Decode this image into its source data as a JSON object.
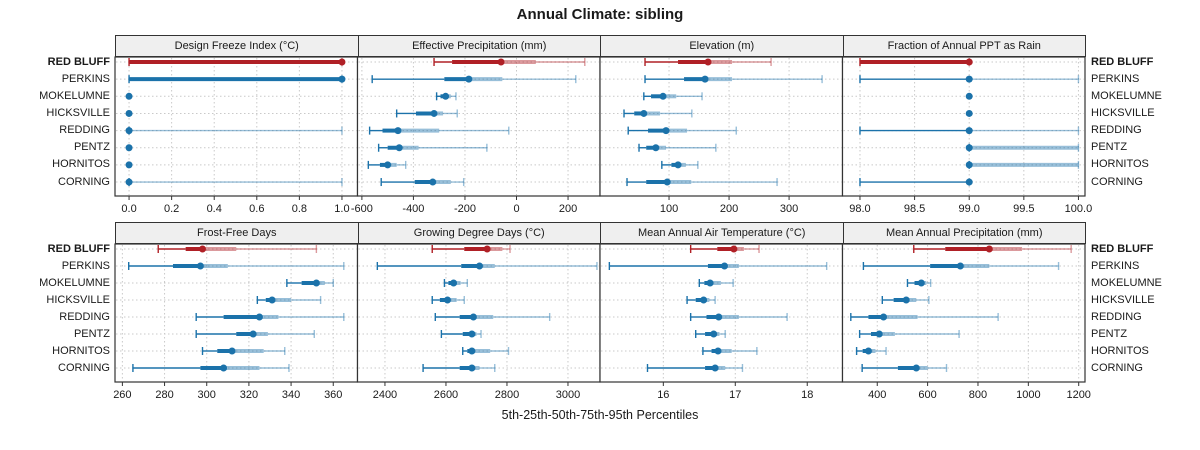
{
  "title": "Annual Climate: sibling",
  "footer": "5th-25th-50th-75th-95th Percentiles",
  "sites": [
    "RED BLUFF",
    "PERKINS",
    "MOKELUMNE",
    "HICKSVILLE",
    "REDDING",
    "PENTZ",
    "HORNITOS",
    "CORNING"
  ],
  "highlight_site": "RED BLUFF",
  "percentiles": [
    "5th",
    "25th",
    "50th",
    "75th",
    "95th"
  ],
  "colors": {
    "highlight": "#b02026",
    "normal": "#1b72aa",
    "grid": "#c9c9c9",
    "panel_border": "#333333",
    "header_bg": "#efefef",
    "text": "#1a1a1a"
  },
  "chart_data": [
    {
      "type": "dot-interval",
      "row": 0,
      "col": 0,
      "title": "Design Freeze Index (°C)",
      "xlim": [
        -0.066,
        1.073
      ],
      "ticks": [
        0.0,
        0.2,
        0.4,
        0.6,
        0.8,
        1.0
      ],
      "tick_labels": [
        "0.0",
        "0.2",
        "0.4",
        "0.6",
        "0.8",
        "1.0"
      ],
      "series": [
        {
          "name": "RED BLUFF",
          "values": [
            0,
            0,
            1,
            1,
            1
          ]
        },
        {
          "name": "PERKINS",
          "values": [
            0,
            0,
            1,
            1,
            1
          ]
        },
        {
          "name": "MOKELUMNE",
          "values": [
            0,
            0,
            0,
            0,
            0
          ]
        },
        {
          "name": "HICKSVILLE",
          "values": [
            0,
            0,
            0,
            0,
            0
          ]
        },
        {
          "name": "REDDING",
          "values": [
            0,
            0,
            0,
            0,
            1
          ]
        },
        {
          "name": "PENTZ",
          "values": [
            0,
            0,
            0,
            0,
            0
          ]
        },
        {
          "name": "HORNITOS",
          "values": [
            0,
            0,
            0,
            0,
            0
          ]
        },
        {
          "name": "CORNING",
          "values": [
            0,
            0,
            0,
            0,
            1
          ]
        }
      ]
    },
    {
      "type": "dot-interval",
      "row": 0,
      "col": 1,
      "title": "Effective Precipitation (mm)",
      "xlim": [
        -617,
        324
      ],
      "ticks": [
        -600,
        -400,
        -200,
        0,
        200
      ],
      "tick_labels": [
        "-600",
        "-400",
        "-200",
        "0",
        "200"
      ],
      "series": [
        {
          "name": "RED BLUFF",
          "values": [
            -320,
            -250,
            -60,
            75,
            265
          ]
        },
        {
          "name": "PERKINS",
          "values": [
            -560,
            -280,
            -185,
            -55,
            230
          ]
        },
        {
          "name": "MOKELUMNE",
          "values": [
            -310,
            -295,
            -275,
            -255,
            -235
          ]
        },
        {
          "name": "HICKSVILLE",
          "values": [
            -465,
            -390,
            -320,
            -285,
            -230
          ]
        },
        {
          "name": "REDDING",
          "values": [
            -570,
            -520,
            -460,
            -300,
            -30
          ]
        },
        {
          "name": "PENTZ",
          "values": [
            -535,
            -500,
            -455,
            -380,
            -115
          ]
        },
        {
          "name": "HORNITOS",
          "values": [
            -575,
            -530,
            -500,
            -465,
            -430
          ]
        },
        {
          "name": "CORNING",
          "values": [
            -525,
            -395,
            -325,
            -255,
            -205
          ]
        }
      ]
    },
    {
      "type": "dot-interval",
      "row": 0,
      "col": 2,
      "title": "Elevation (m)",
      "xlim": [
        -15,
        389
      ],
      "ticks": [
        100,
        200,
        300
      ],
      "tick_labels": [
        "100",
        "200",
        "300"
      ],
      "series": [
        {
          "name": "RED BLUFF",
          "values": [
            60,
            115,
            165,
            205,
            270
          ]
        },
        {
          "name": "PERKINS",
          "values": [
            60,
            125,
            160,
            205,
            355
          ]
        },
        {
          "name": "MOKELUMNE",
          "values": [
            58,
            70,
            90,
            112,
            155
          ]
        },
        {
          "name": "HICKSVILLE",
          "values": [
            25,
            42,
            58,
            85,
            138
          ]
        },
        {
          "name": "REDDING",
          "values": [
            32,
            65,
            95,
            130,
            212
          ]
        },
        {
          "name": "PENTZ",
          "values": [
            50,
            62,
            78,
            95,
            178
          ]
        },
        {
          "name": "HORNITOS",
          "values": [
            88,
            104,
            115,
            128,
            148
          ]
        },
        {
          "name": "CORNING",
          "values": [
            30,
            62,
            97,
            137,
            280
          ]
        }
      ]
    },
    {
      "type": "dot-interval",
      "row": 0,
      "col": 3,
      "title": "Fraction of Annual PPT as Rain",
      "xlim": [
        97.84,
        100.06
      ],
      "ticks": [
        98.0,
        98.5,
        99.0,
        99.5,
        100.0
      ],
      "tick_labels": [
        "98.0",
        "98.5",
        "99.0",
        "99.5",
        "100.0"
      ],
      "series": [
        {
          "name": "RED BLUFF",
          "values": [
            98,
            98,
            99,
            99,
            99
          ]
        },
        {
          "name": "PERKINS",
          "values": [
            98,
            99,
            99,
            99,
            100
          ]
        },
        {
          "name": "MOKELUMNE",
          "values": [
            99,
            99,
            99,
            99,
            99
          ]
        },
        {
          "name": "HICKSVILLE",
          "values": [
            99,
            99,
            99,
            99,
            99
          ]
        },
        {
          "name": "REDDING",
          "values": [
            98,
            99,
            99,
            99,
            100
          ]
        },
        {
          "name": "PENTZ",
          "values": [
            99,
            99,
            99,
            100,
            100
          ]
        },
        {
          "name": "HORNITOS",
          "values": [
            99,
            99,
            99,
            100,
            100
          ]
        },
        {
          "name": "CORNING",
          "values": [
            98,
            99,
            99,
            99,
            99
          ]
        }
      ]
    },
    {
      "type": "dot-interval",
      "row": 1,
      "col": 0,
      "title": "Frost-Free Days",
      "xlim": [
        256.5,
        371.5
      ],
      "ticks": [
        260,
        280,
        300,
        320,
        340,
        360
      ],
      "tick_labels": [
        "260",
        "280",
        "300",
        "320",
        "340",
        "360"
      ],
      "series": [
        {
          "name": "RED BLUFF",
          "values": [
            277,
            290,
            298,
            314,
            352
          ]
        },
        {
          "name": "PERKINS",
          "values": [
            263,
            284,
            297,
            310,
            365
          ]
        },
        {
          "name": "MOKELUMNE",
          "values": [
            338,
            345,
            352,
            356,
            360
          ]
        },
        {
          "name": "HICKSVILLE",
          "values": [
            324,
            328,
            331,
            340,
            354
          ]
        },
        {
          "name": "REDDING",
          "values": [
            295,
            308,
            325,
            334,
            365
          ]
        },
        {
          "name": "PENTZ",
          "values": [
            295,
            314,
            322,
            329,
            351
          ]
        },
        {
          "name": "HORNITOS",
          "values": [
            298,
            305,
            312,
            327,
            337
          ]
        },
        {
          "name": "CORNING",
          "values": [
            265,
            297,
            308,
            325,
            339
          ]
        }
      ]
    },
    {
      "type": "dot-interval",
      "row": 1,
      "col": 1,
      "title": "Growing Degree Days (°C)",
      "xlim": [
        2310,
        3105
      ],
      "ticks": [
        2400,
        2600,
        2800,
        3000
      ],
      "tick_labels": [
        "2400",
        "2600",
        "2800",
        "3000"
      ],
      "series": [
        {
          "name": "RED BLUFF",
          "values": [
            2555,
            2660,
            2735,
            2785,
            2810
          ]
        },
        {
          "name": "PERKINS",
          "values": [
            2375,
            2650,
            2710,
            2760,
            3095
          ]
        },
        {
          "name": "MOKELUMNE",
          "values": [
            2595,
            2608,
            2625,
            2648,
            2670
          ]
        },
        {
          "name": "HICKSVILLE",
          "values": [
            2555,
            2580,
            2605,
            2635,
            2660
          ]
        },
        {
          "name": "REDDING",
          "values": [
            2565,
            2645,
            2690,
            2755,
            2940
          ]
        },
        {
          "name": "PENTZ",
          "values": [
            2585,
            2655,
            2685,
            2700,
            2715
          ]
        },
        {
          "name": "HORNITOS",
          "values": [
            2655,
            2670,
            2685,
            2745,
            2805
          ]
        },
        {
          "name": "CORNING",
          "values": [
            2525,
            2645,
            2685,
            2710,
            2760
          ]
        }
      ]
    },
    {
      "type": "dot-interval",
      "row": 1,
      "col": 2,
      "title": "Mean Annual Air Temperature (°C)",
      "xlim": [
        15.12,
        18.49
      ],
      "ticks": [
        16,
        17,
        18
      ],
      "tick_labels": [
        "16",
        "17",
        "18"
      ],
      "series": [
        {
          "name": "RED BLUFF",
          "values": [
            16.38,
            16.75,
            16.98,
            17.12,
            17.33
          ]
        },
        {
          "name": "PERKINS",
          "values": [
            15.25,
            16.62,
            16.85,
            17.05,
            18.27
          ]
        },
        {
          "name": "MOKELUMNE",
          "values": [
            16.5,
            16.57,
            16.65,
            16.8,
            16.97
          ]
        },
        {
          "name": "HICKSVILLE",
          "values": [
            16.33,
            16.45,
            16.56,
            16.64,
            16.72
          ]
        },
        {
          "name": "REDDING",
          "values": [
            16.38,
            16.6,
            16.77,
            17.05,
            17.72
          ]
        },
        {
          "name": "PENTZ",
          "values": [
            16.45,
            16.58,
            16.7,
            16.78,
            16.86
          ]
        },
        {
          "name": "HORNITOS",
          "values": [
            16.55,
            16.67,
            16.76,
            16.95,
            17.3
          ]
        },
        {
          "name": "CORNING",
          "values": [
            15.78,
            16.58,
            16.72,
            16.86,
            17.1
          ]
        }
      ]
    },
    {
      "type": "dot-interval",
      "row": 1,
      "col": 3,
      "title": "Mean Annual Precipitation (mm)",
      "xlim": [
        262,
        1225
      ],
      "ticks": [
        400,
        600,
        800,
        1000,
        1200
      ],
      "tick_labels": [
        "400",
        "600",
        "800",
        "1000",
        "1200"
      ],
      "series": [
        {
          "name": "RED BLUFF",
          "values": [
            545,
            670,
            845,
            975,
            1170
          ]
        },
        {
          "name": "PERKINS",
          "values": [
            345,
            610,
            730,
            845,
            1120
          ]
        },
        {
          "name": "MOKELUMNE",
          "values": [
            520,
            548,
            575,
            595,
            612
          ]
        },
        {
          "name": "HICKSVILLE",
          "values": [
            420,
            465,
            515,
            555,
            605
          ]
        },
        {
          "name": "REDDING",
          "values": [
            295,
            365,
            425,
            560,
            880
          ]
        },
        {
          "name": "PENTZ",
          "values": [
            330,
            375,
            408,
            470,
            725
          ]
        },
        {
          "name": "HORNITOS",
          "values": [
            318,
            342,
            365,
            393,
            435
          ]
        },
        {
          "name": "CORNING",
          "values": [
            340,
            482,
            555,
            600,
            675
          ]
        }
      ]
    }
  ]
}
